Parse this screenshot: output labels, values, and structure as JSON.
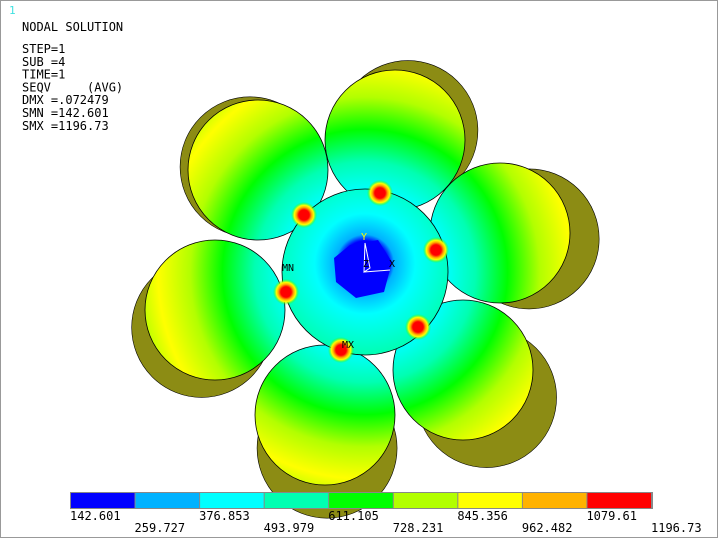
{
  "window_number": "1",
  "header": {
    "title": "NODAL SOLUTION",
    "lines": [
      "STEP=1",
      "SUB =4",
      "TIME=1",
      "SEQV     (AVG)",
      "DMX =.072479",
      "SMN =142.601",
      "SMX =1196.73"
    ]
  },
  "plot_labels": {
    "y_axis": "Y",
    "z_axis": "Z",
    "x_axis": "X",
    "min": "MN",
    "max": "MX"
  },
  "legend": {
    "colors": [
      "#0000ff",
      "#00b2ff",
      "#00ffff",
      "#00ffb2",
      "#00ff00",
      "#b2ff00",
      "#ffff00",
      "#ffb200",
      "#ff0000"
    ],
    "labels": [
      "142.601",
      "259.727",
      "376.853",
      "493.979",
      "611.105",
      "728.231",
      "845.356",
      "962.482",
      "1079.61",
      "1196.73"
    ]
  }
}
